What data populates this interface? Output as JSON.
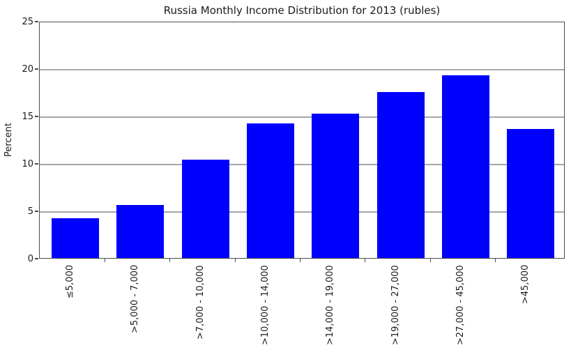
{
  "title": "Russia Monthly Income Distribution for 2013 (rubles)",
  "chart_data": {
    "type": "bar",
    "title": "Russia Monthly Income Distribution for 2013 (rubles)",
    "categories": [
      "≤5,000",
      ">5,000 - 7,000",
      ">7,000 - 10,000",
      ">10,000 - 14,000",
      ">14,000 - 19,000",
      ">19,000 - 27,000",
      ">27,000 - 45,000",
      ">45,000"
    ],
    "values": [
      4.2,
      5.6,
      10.4,
      14.2,
      15.2,
      17.5,
      19.3,
      13.6
    ],
    "xlabel": "",
    "ylabel": "Percent",
    "ylim": [
      0,
      25
    ],
    "yticks": [
      0,
      5,
      10,
      15,
      20,
      25
    ],
    "grid": true,
    "legend": false,
    "bar_color": "#0000ff",
    "grid_color": "#a6a6a6",
    "axis_color": "#4a4a4a"
  }
}
